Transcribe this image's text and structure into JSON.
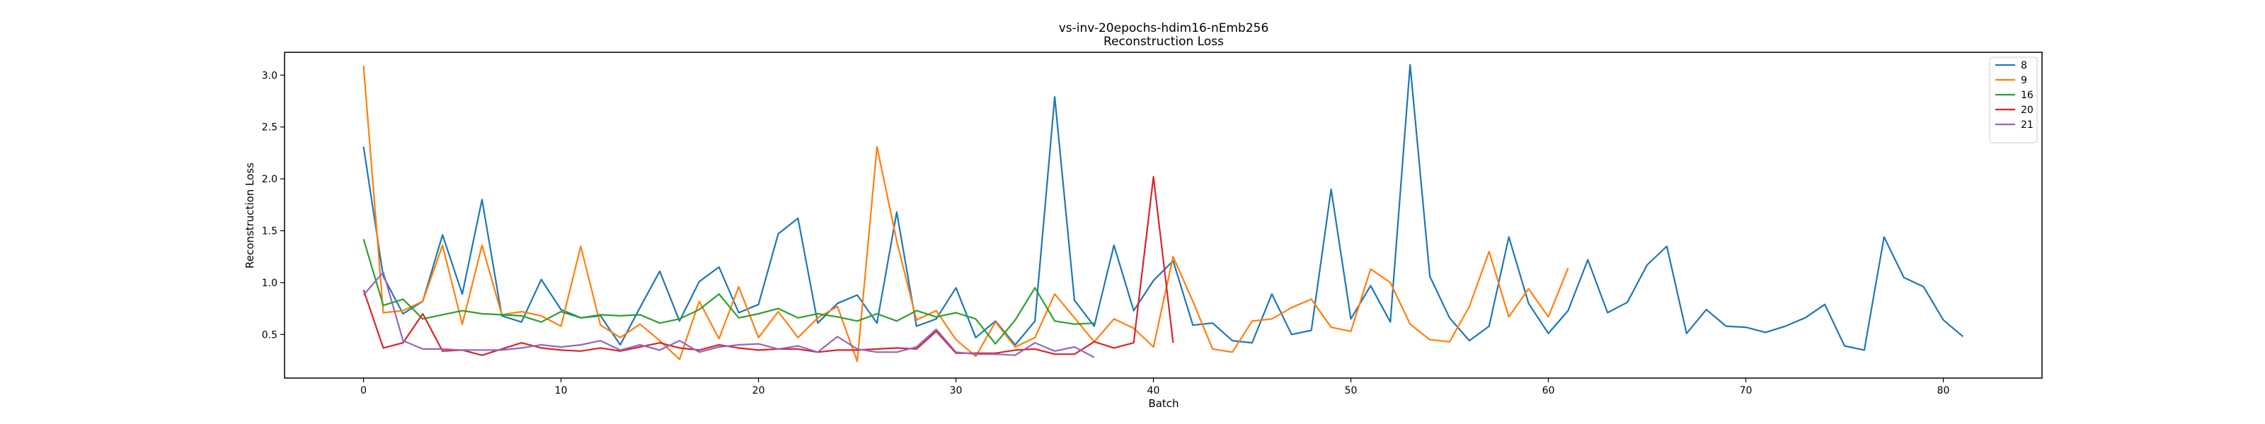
{
  "chart_data": {
    "type": "line",
    "title": "vs-inv-20epochs-hdim16-nEmb256",
    "subtitle": "Reconstruction Loss",
    "xlabel": "Batch",
    "ylabel": "Reconstruction Loss",
    "xlim": [
      -4,
      85
    ],
    "ylim": [
      0.08,
      3.22
    ],
    "xticks": [
      0,
      10,
      20,
      30,
      40,
      50,
      60,
      70,
      80
    ],
    "yticks": [
      0.5,
      1.0,
      1.5,
      2.0,
      2.5,
      3.0
    ],
    "ytick_labels": [
      "0.5",
      "1.0",
      "1.5",
      "2.0",
      "2.5",
      "3.0"
    ],
    "grid": false,
    "legend_position": "top-right",
    "series": [
      {
        "name": "8",
        "color": "#1f77b4",
        "values": [
          2.31,
          1.06,
          0.7,
          0.82,
          1.46,
          0.89,
          1.8,
          0.68,
          0.62,
          1.03,
          0.74,
          0.66,
          0.68,
          0.4,
          0.76,
          1.11,
          0.63,
          1.01,
          1.15,
          0.71,
          0.79,
          1.47,
          1.62,
          0.61,
          0.8,
          0.88,
          0.61,
          1.68,
          0.58,
          0.65,
          0.95,
          0.47,
          0.63,
          0.4,
          0.63,
          2.79,
          0.83,
          0.58,
          1.36,
          0.73,
          1.02,
          1.21,
          0.59,
          0.61,
          0.44,
          0.42,
          0.89,
          0.5,
          0.54,
          1.9,
          0.65,
          0.97,
          0.62,
          3.1,
          1.06,
          0.66,
          0.44,
          0.58,
          1.44,
          0.8,
          0.51,
          0.73,
          1.22,
          0.71,
          0.81,
          1.17,
          1.35,
          0.51,
          0.74,
          0.58,
          0.57,
          0.52,
          0.58,
          0.66,
          0.79,
          0.39,
          0.35,
          1.44,
          1.05,
          0.96,
          0.64,
          0.48
        ]
      },
      {
        "name": "9",
        "color": "#ff7f0e",
        "values": [
          3.09,
          0.71,
          0.73,
          0.82,
          1.36,
          0.6,
          1.36,
          0.69,
          0.72,
          0.68,
          0.58,
          1.35,
          0.59,
          0.47,
          0.6,
          0.44,
          0.26,
          0.82,
          0.46,
          0.96,
          0.47,
          0.72,
          0.47,
          0.66,
          0.77,
          0.24,
          2.31,
          1.4,
          0.64,
          0.73,
          0.45,
          0.29,
          0.62,
          0.38,
          0.47,
          0.89,
          0.66,
          0.43,
          0.65,
          0.56,
          0.38,
          1.25,
          0.82,
          0.36,
          0.33,
          0.63,
          0.65,
          0.76,
          0.84,
          0.57,
          0.53,
          1.13,
          1.0,
          0.6,
          0.45,
          0.43,
          0.77,
          1.3,
          0.67,
          0.94,
          0.67,
          1.14
        ]
      },
      {
        "name": "16",
        "color": "#2ca02c",
        "values": [
          1.42,
          0.78,
          0.84,
          0.65,
          0.69,
          0.73,
          0.7,
          0.69,
          0.68,
          0.62,
          0.72,
          0.66,
          0.69,
          0.68,
          0.69,
          0.61,
          0.65,
          0.74,
          0.89,
          0.66,
          0.7,
          0.75,
          0.66,
          0.7,
          0.67,
          0.63,
          0.7,
          0.63,
          0.73,
          0.67,
          0.71,
          0.65,
          0.41,
          0.64,
          0.95,
          0.63,
          0.6,
          0.61
        ]
      },
      {
        "name": "20",
        "color": "#d62728",
        "values": [
          0.93,
          0.37,
          0.42,
          0.7,
          0.34,
          0.35,
          0.3,
          0.36,
          0.42,
          0.37,
          0.35,
          0.34,
          0.37,
          0.34,
          0.38,
          0.42,
          0.37,
          0.35,
          0.4,
          0.37,
          0.35,
          0.36,
          0.36,
          0.33,
          0.35,
          0.35,
          0.36,
          0.37,
          0.36,
          0.53,
          0.32,
          0.32,
          0.32,
          0.35,
          0.36,
          0.31,
          0.31,
          0.43,
          0.37,
          0.42,
          2.02,
          0.42
        ]
      },
      {
        "name": "21",
        "color": "#9467bd",
        "values": [
          0.88,
          1.1,
          0.44,
          0.36,
          0.36,
          0.35,
          0.35,
          0.35,
          0.37,
          0.4,
          0.38,
          0.4,
          0.44,
          0.35,
          0.4,
          0.35,
          0.44,
          0.33,
          0.38,
          0.4,
          0.41,
          0.36,
          0.39,
          0.33,
          0.48,
          0.36,
          0.33,
          0.33,
          0.38,
          0.55,
          0.33,
          0.31,
          0.31,
          0.3,
          0.42,
          0.34,
          0.38,
          0.28
        ]
      }
    ]
  }
}
